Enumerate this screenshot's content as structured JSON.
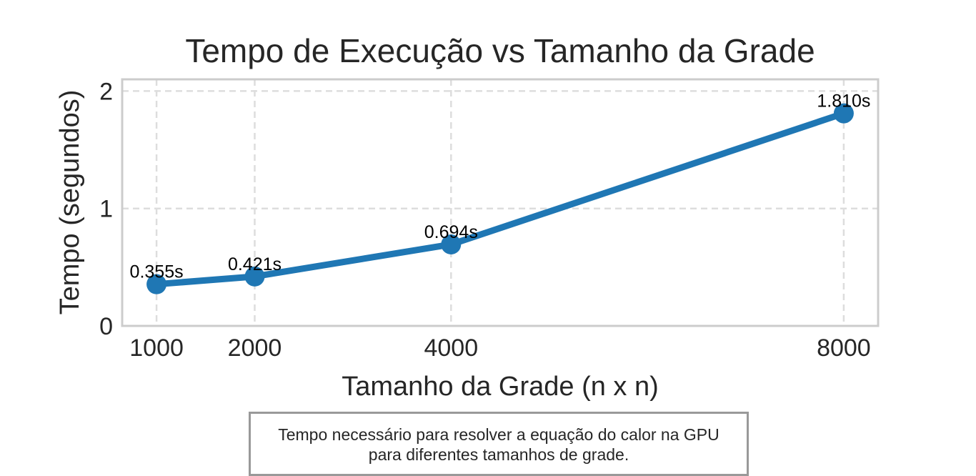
{
  "chart_data": {
    "type": "line",
    "title": "Tempo de Execução vs Tamanho da Grade",
    "xlabel": "Tamanho da Grade (n x n)",
    "ylabel": "Tempo (segundos)",
    "x": [
      1000,
      2000,
      4000,
      8000
    ],
    "x_tick_labels": [
      "1000",
      "2000",
      "4000",
      "8000"
    ],
    "series": [
      {
        "values": [
          0.355,
          0.421,
          0.694,
          1.81
        ],
        "data_labels": [
          "0.355s",
          "0.421s",
          "0.694s",
          "1.810s"
        ],
        "color": "#1f77b4"
      }
    ],
    "yticks": [
      0,
      1,
      2
    ],
    "y_tick_labels": [
      "0",
      "1",
      "2"
    ],
    "xlim": [
      650,
      8350
    ],
    "ylim": [
      0,
      2.1
    ],
    "grid": true
  },
  "caption": {
    "line1": "Tempo necessário para resolver a equação do calor na GPU",
    "line2": "para diferentes tamanhos de grade."
  }
}
